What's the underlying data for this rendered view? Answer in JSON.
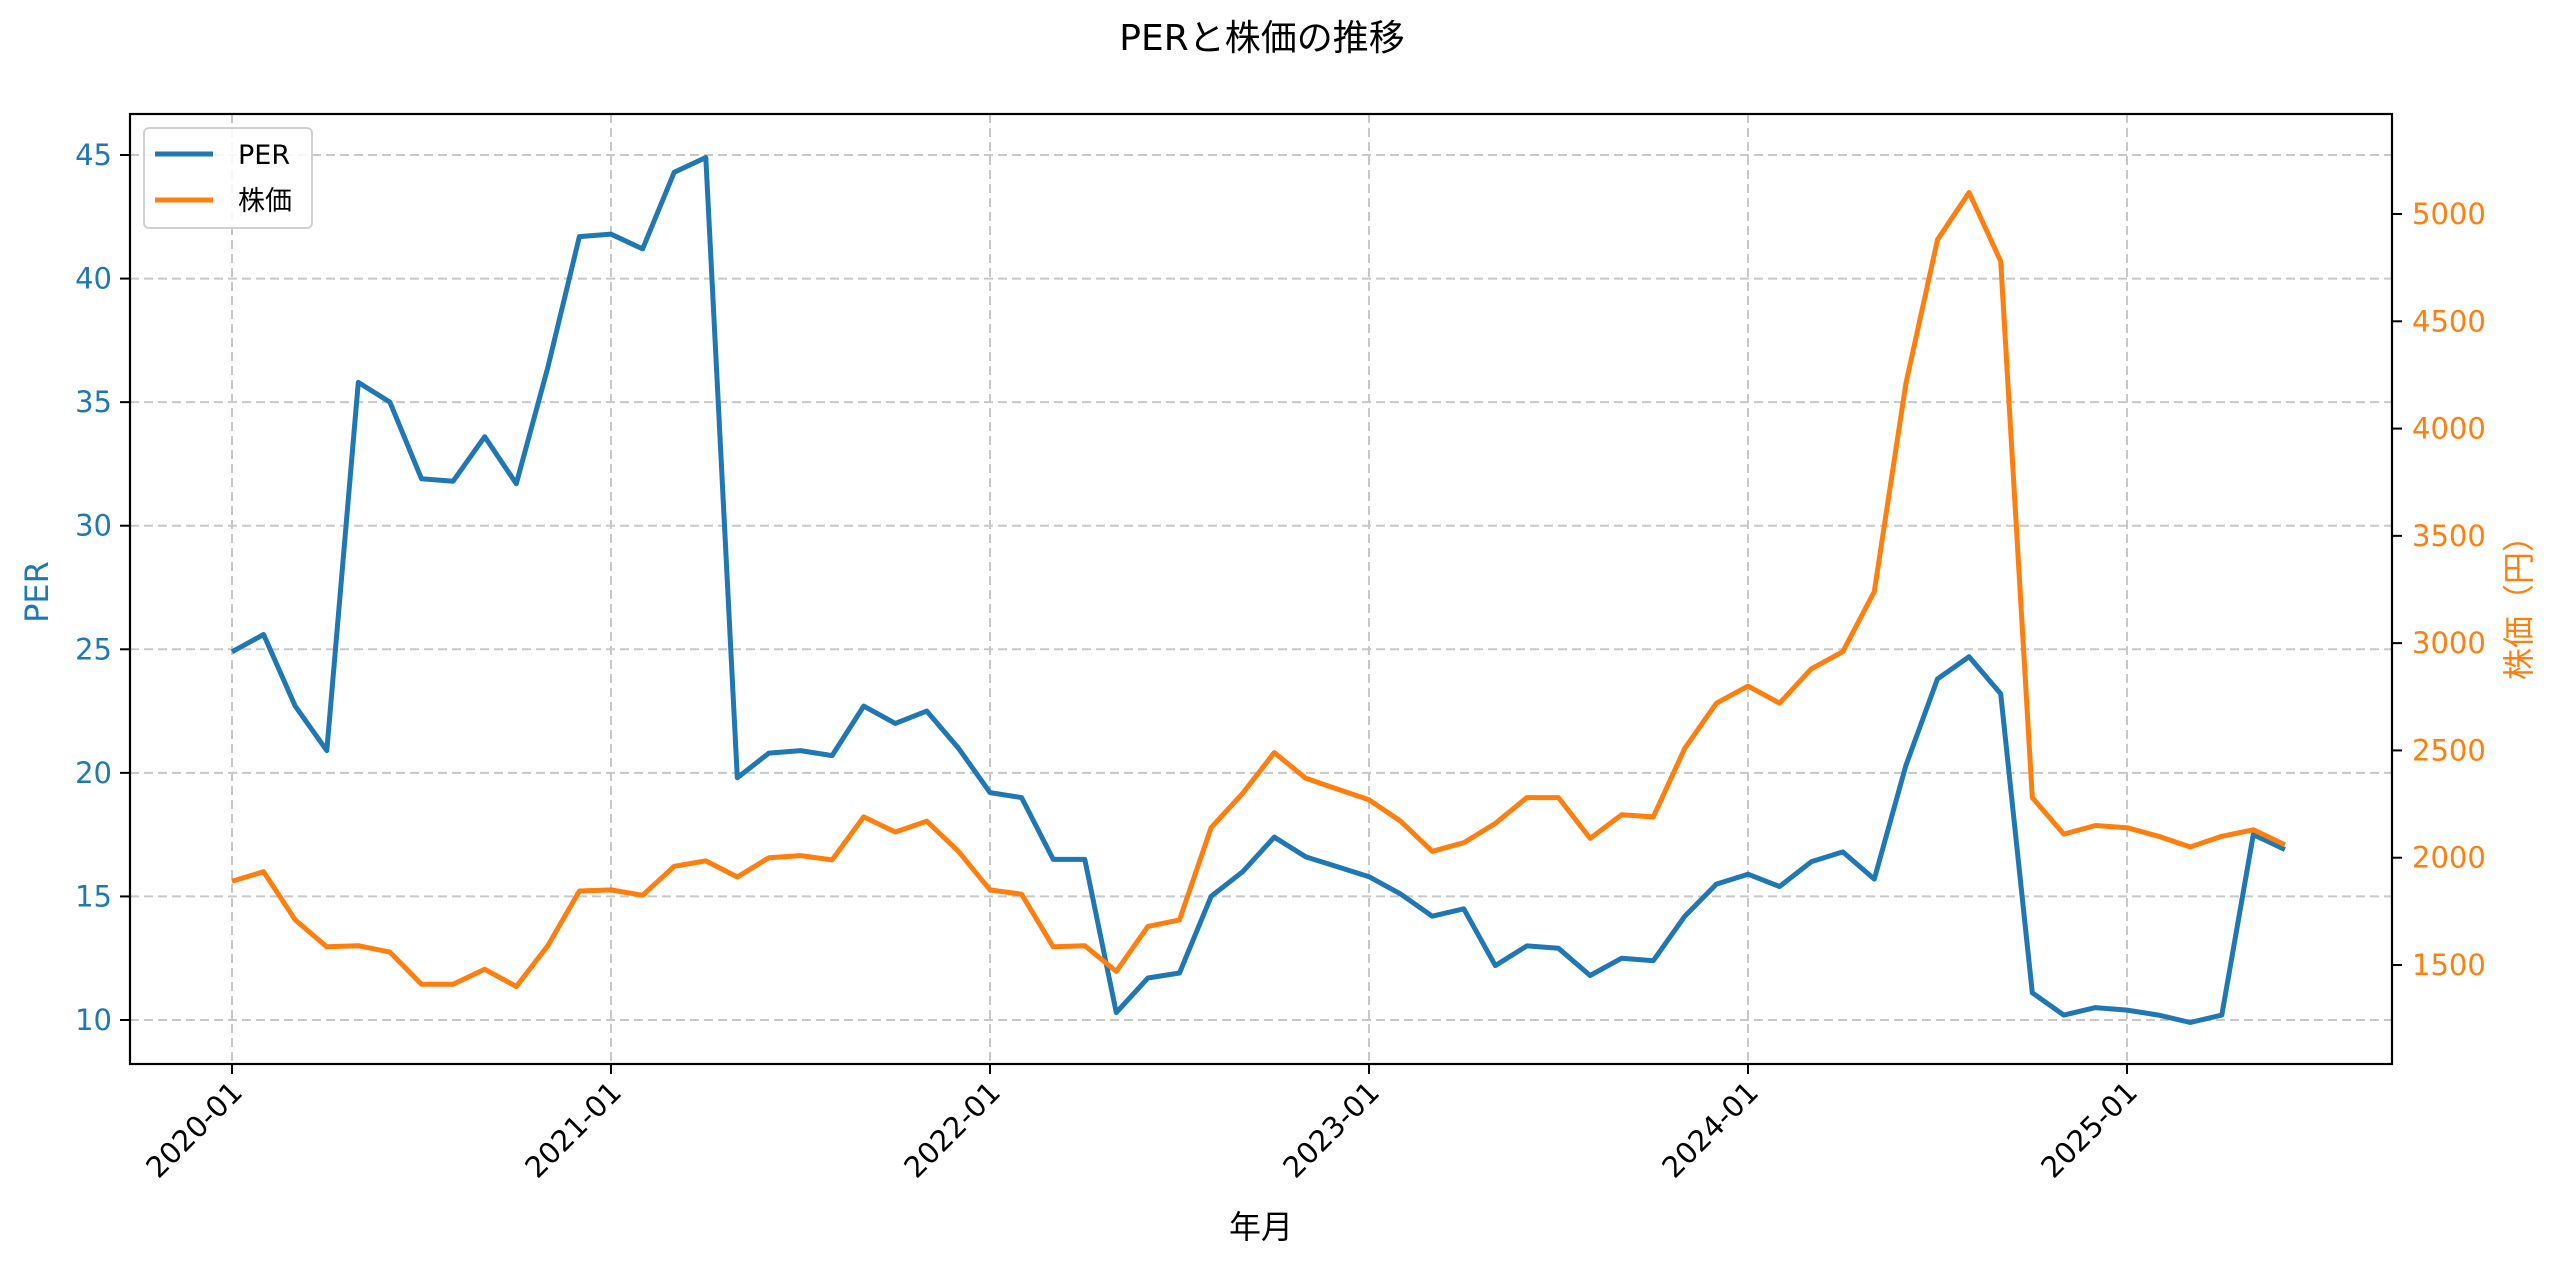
{
  "chart_data": {
    "type": "line",
    "title": "PERと株価の推移",
    "xlabel": "年月",
    "ylabel_left": "PER",
    "ylabel_right": "株価（円）",
    "x_ticks": [
      "2020-01",
      "2021-01",
      "2022-01",
      "2023-01",
      "2024-01",
      "2025-01"
    ],
    "y_left_ticks": [
      10,
      15,
      20,
      25,
      30,
      35,
      40,
      45
    ],
    "y_right_ticks": [
      1500,
      2000,
      2500,
      3000,
      3500,
      4000,
      4500,
      5000
    ],
    "ylim_left": [
      8.3,
      46.7
    ],
    "ylim_right": [
      1030,
      5460
    ],
    "grid": true,
    "legend_position": "upper left",
    "x": [
      "2020-01",
      "2020-02",
      "2020-03",
      "2020-04",
      "2020-05",
      "2020-06",
      "2020-07",
      "2020-08",
      "2020-09",
      "2020-10",
      "2020-11",
      "2020-12",
      "2021-01",
      "2021-02",
      "2021-03",
      "2021-04",
      "2021-05",
      "2021-06",
      "2021-07",
      "2021-08",
      "2021-09",
      "2021-10",
      "2021-11",
      "2021-12",
      "2022-01",
      "2022-02",
      "2022-03",
      "2022-04",
      "2022-05",
      "2022-06",
      "2022-07",
      "2022-08",
      "2022-09",
      "2022-10",
      "2022-11",
      "2022-12",
      "2023-01",
      "2023-02",
      "2023-03",
      "2023-04",
      "2023-05",
      "2023-06",
      "2023-07",
      "2023-08",
      "2023-09",
      "2023-10",
      "2023-11",
      "2023-12",
      "2024-01",
      "2024-02",
      "2024-03",
      "2024-04",
      "2024-05",
      "2024-06",
      "2024-07",
      "2024-08",
      "2024-09",
      "2024-10",
      "2024-11",
      "2024-12",
      "2025-01",
      "2025-02",
      "2025-03",
      "2025-04",
      "2025-05",
      "2025-06"
    ],
    "series": [
      {
        "name": "PER",
        "axis": "left",
        "color": "#1f77b4",
        "values": [
          24.9,
          25.6,
          22.7,
          20.9,
          35.8,
          35.0,
          31.9,
          31.8,
          33.6,
          31.7,
          36.4,
          41.7,
          41.8,
          41.2,
          44.3,
          44.9,
          19.8,
          20.8,
          20.9,
          20.7,
          22.7,
          22.0,
          22.5,
          21.0,
          19.2,
          19.0,
          16.5,
          16.5,
          10.3,
          11.7,
          11.9,
          15.0,
          16.0,
          17.4,
          16.6,
          16.2,
          15.8,
          15.1,
          14.2,
          14.5,
          12.2,
          13.0,
          12.9,
          11.8,
          12.5,
          12.4,
          14.2,
          15.5,
          15.9,
          15.4,
          16.4,
          16.8,
          15.7,
          20.3,
          23.8,
          24.7,
          23.2,
          11.1,
          10.2,
          10.5,
          10.4,
          10.2,
          9.9,
          10.2,
          17.5,
          16.9
        ]
      },
      {
        "name": "株価",
        "axis": "right",
        "color": "#ff7f0e",
        "values": [
          1890,
          1935,
          1710,
          1585,
          1590,
          1560,
          1410,
          1410,
          1480,
          1400,
          1590,
          1845,
          1850,
          1825,
          1960,
          1985,
          1910,
          2000,
          2010,
          1990,
          2190,
          2120,
          2170,
          2030,
          1850,
          1830,
          1585,
          1590,
          1470,
          1680,
          1710,
          2140,
          2300,
          2490,
          2370,
          2320,
          2270,
          2170,
          2030,
          2070,
          2160,
          2280,
          2280,
          2090,
          2200,
          2190,
          2510,
          2720,
          2800,
          2720,
          2880,
          2960,
          3240,
          4210,
          4880,
          5100,
          4780,
          2280,
          2110,
          2150,
          2140,
          2100,
          2050,
          2100,
          2130,
          2060
        ]
      }
    ]
  },
  "legend": {
    "items": [
      {
        "label": "PER",
        "color": "#1f77b4"
      },
      {
        "label": "株価",
        "color": "#ff7f0e"
      }
    ]
  },
  "colors": {
    "per": "#1f77b4",
    "price": "#ff7f0e",
    "grid": "#c8c8c8",
    "axis": "#000000"
  }
}
